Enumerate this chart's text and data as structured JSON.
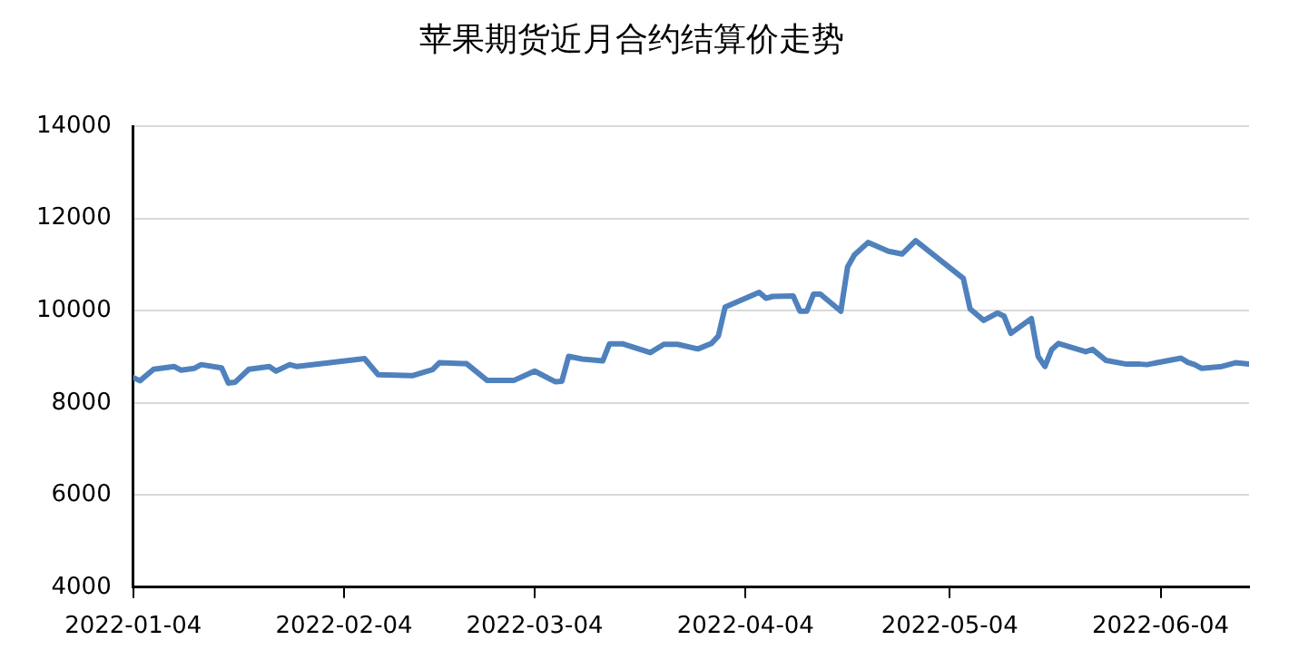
{
  "chart_data": {
    "type": "line",
    "title": "苹果期货近月合约结算价走势",
    "x": [
      "2022-01-04",
      "2022-01-05",
      "2022-01-07",
      "2022-01-10",
      "2022-01-11",
      "2022-01-13",
      "2022-01-14",
      "2022-01-17",
      "2022-01-18",
      "2022-01-19",
      "2022-01-21",
      "2022-01-24",
      "2022-01-25",
      "2022-01-27",
      "2022-01-28",
      "2022-02-07",
      "2022-02-09",
      "2022-02-14",
      "2022-02-17",
      "2022-02-18",
      "2022-02-22",
      "2022-02-25",
      "2022-03-01",
      "2022-03-04",
      "2022-03-07",
      "2022-03-08",
      "2022-03-09",
      "2022-03-11",
      "2022-03-14",
      "2022-03-15",
      "2022-03-17",
      "2022-03-21",
      "2022-03-23",
      "2022-03-25",
      "2022-03-28",
      "2022-03-30",
      "2022-03-31",
      "2022-04-01",
      "2022-04-06",
      "2022-04-07",
      "2022-04-08",
      "2022-04-11",
      "2022-04-12",
      "2022-04-13",
      "2022-04-14",
      "2022-04-15",
      "2022-04-18",
      "2022-04-19",
      "2022-04-20",
      "2022-04-22",
      "2022-04-25",
      "2022-04-27",
      "2022-04-29",
      "2022-05-06",
      "2022-05-07",
      "2022-05-09",
      "2022-05-11",
      "2022-05-12",
      "2022-05-13",
      "2022-05-16",
      "2022-05-17",
      "2022-05-18",
      "2022-05-19",
      "2022-05-20",
      "2022-05-24",
      "2022-05-25",
      "2022-05-27",
      "2022-05-30",
      "2022-06-01",
      "2022-06-02",
      "2022-06-07",
      "2022-06-08",
      "2022-06-09",
      "2022-06-10",
      "2022-06-13",
      "2022-06-15",
      "2022-06-17"
    ],
    "series": [
      {
        "color": "#4f81bd",
        "values": [
          8550,
          8480,
          8730,
          8790,
          8710,
          8750,
          8830,
          8760,
          8430,
          8450,
          8730,
          8790,
          8690,
          8830,
          8790,
          8960,
          8610,
          8590,
          8720,
          8870,
          8850,
          8490,
          8490,
          8690,
          8460,
          8470,
          9010,
          8950,
          8910,
          9280,
          9280,
          9090,
          9270,
          9270,
          9170,
          9290,
          9450,
          10080,
          10400,
          10270,
          10310,
          10320,
          9990,
          9990,
          10360,
          10360,
          9990,
          10950,
          11210,
          11480,
          11290,
          11230,
          11520,
          10700,
          10040,
          9790,
          9950,
          9880,
          9510,
          9830,
          9010,
          8790,
          9160,
          9290,
          9110,
          9160,
          8920,
          8840,
          8840,
          8830,
          8970,
          8880,
          8830,
          8750,
          8790,
          8870,
          8840
        ]
      }
    ],
    "xlim": [
      "2022-01-04",
      "2022-06-17"
    ],
    "xticks": [
      "2022-01-04",
      "2022-02-04",
      "2022-03-04",
      "2022-04-04",
      "2022-05-04",
      "2022-06-04"
    ],
    "ylim": [
      4000,
      14000
    ],
    "yticks": [
      4000,
      6000,
      8000,
      10000,
      12000,
      14000
    ],
    "grid": "y",
    "legend": false,
    "marker": "none",
    "line_style": "solid"
  }
}
